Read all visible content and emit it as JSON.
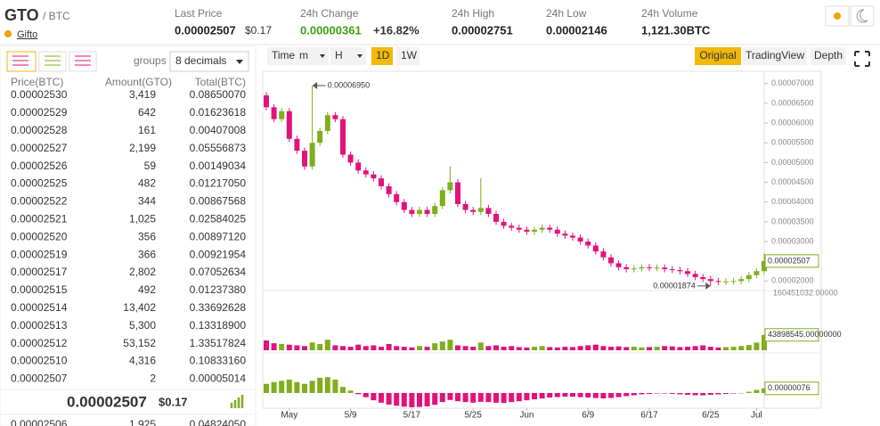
{
  "header": {
    "symbol": "GTO",
    "quote": "/ BTC",
    "name": "Gifto",
    "stats": [
      {
        "label": "Last Price",
        "value": "0.00002507",
        "extra": "$0.17"
      },
      {
        "label": "24h Change",
        "value": "0.00000361",
        "extra": "+16.82%"
      },
      {
        "label": "24h High",
        "value": "0.00002751"
      },
      {
        "label": "24h Low",
        "value": "0.00002146"
      },
      {
        "label": "24h Volume",
        "value": "1,121.30BTC"
      }
    ]
  },
  "orderbook": {
    "groups_label": "groups",
    "decimals": "8 decimals",
    "columns": [
      "Price(BTC)",
      "Amount(GTO)",
      "Total(BTC)"
    ],
    "asks": [
      [
        "0.00002530",
        "3,419",
        "0.08650070"
      ],
      [
        "0.00002529",
        "642",
        "0.01623618"
      ],
      [
        "0.00002528",
        "161",
        "0.00407008"
      ],
      [
        "0.00002527",
        "2,199",
        "0.05556873"
      ],
      [
        "0.00002526",
        "59",
        "0.00149034"
      ],
      [
        "0.00002525",
        "482",
        "0.01217050"
      ],
      [
        "0.00002522",
        "344",
        "0.00867568"
      ],
      [
        "0.00002521",
        "1,025",
        "0.02584025"
      ],
      [
        "0.00002520",
        "356",
        "0.00897120"
      ],
      [
        "0.00002519",
        "366",
        "0.00921954"
      ],
      [
        "0.00002517",
        "2,802",
        "0.07052634"
      ],
      [
        "0.00002515",
        "492",
        "0.01237380"
      ],
      [
        "0.00002514",
        "13,402",
        "0.33692628"
      ],
      [
        "0.00002513",
        "5,300",
        "0.13318900"
      ],
      [
        "0.00002512",
        "53,152",
        "1.33517824"
      ],
      [
        "0.00002510",
        "4,316",
        "0.10833160"
      ],
      [
        "0.00002507",
        "2",
        "0.00005014"
      ]
    ],
    "last_price": "0.00002507",
    "last_usd": "$0.17",
    "bids": [
      [
        "0.00002506",
        "1,925",
        "0.04824050"
      ]
    ]
  },
  "chart_toolbar": {
    "left": [
      "Time",
      "m",
      "H",
      "1D",
      "1W"
    ],
    "active_interval": 3,
    "right": [
      "Original",
      "TradingView",
      "Depth"
    ],
    "active_view": 0
  },
  "chart_data": {
    "type": "candlestick",
    "up_color": "#7fae1c",
    "down_color": "#e2127c",
    "ylim": [
      1.85e-05,
      7.13e-05
    ],
    "yticks": [
      {
        "value": 2e-05,
        "label": "0.00002000"
      },
      {
        "value": 3e-05,
        "label": "0.00003000"
      },
      {
        "value": 3.5e-05,
        "label": "0.00003500"
      },
      {
        "value": 4e-05,
        "label": "0.00004000"
      },
      {
        "value": 4.5e-05,
        "label": "0.00004500"
      },
      {
        "value": 5e-05,
        "label": "0.00005000"
      },
      {
        "value": 5.5e-05,
        "label": "0.00005500"
      },
      {
        "value": 6e-05,
        "label": "0.00006000"
      },
      {
        "value": 6.5e-05,
        "label": "0.00006500"
      },
      {
        "value": 7e-05,
        "label": "0.00007000"
      }
    ],
    "xticks": [
      {
        "value": 3,
        "label": "May"
      },
      {
        "value": 11,
        "label": "5/9"
      },
      {
        "value": 19,
        "label": "5/17"
      },
      {
        "value": 27,
        "label": "5/25"
      },
      {
        "value": 34,
        "label": "Jun"
      },
      {
        "value": 42,
        "label": "6/9"
      },
      {
        "value": 50,
        "label": "6/17"
      },
      {
        "value": 58,
        "label": "6/25"
      },
      {
        "value": 64,
        "label": "Jul"
      }
    ],
    "open": [
      6.7e-05,
      6.4e-05,
      6.1e-05,
      6.3e-05,
      5.6e-05,
      5.3e-05,
      4.9e-05,
      5.5e-05,
      5.8e-05,
      6.2e-05,
      6.1e-05,
      5.2e-05,
      5e-05,
      4.8e-05,
      4.7e-05,
      4.6e-05,
      4.4e-05,
      4.2e-05,
      4e-05,
      3.8e-05,
      3.7e-05,
      3.8e-05,
      3.7e-05,
      3.9e-05,
      4.3e-05,
      4.5e-05,
      3.95e-05,
      3.8e-05,
      3.75e-05,
      3.85e-05,
      3.7e-05,
      3.5e-05,
      3.4e-05,
      3.35e-05,
      3.3e-05,
      3.25e-05,
      3.3e-05,
      3.35e-05,
      3.3e-05,
      3.2e-05,
      3.15e-05,
      3.1e-05,
      3e-05,
      2.9e-05,
      2.75e-05,
      2.6e-05,
      2.45e-05,
      2.35e-05,
      2.3e-05,
      2.32e-05,
      2.35e-05,
      2.33e-05,
      2.34e-05,
      2.3e-05,
      2.28e-05,
      2.25e-05,
      2.18e-05,
      2.1e-05,
      2.05e-05,
      2e-05,
      1.98e-05,
      1.99e-05,
      2e-05,
      2.05e-05,
      2.15e-05,
      2.25e-05
    ],
    "high": [
      6.78e-05,
      6.48e-05,
      6.38e-05,
      6.38e-05,
      5.68e-05,
      5.38e-05,
      6.95e-05,
      5.88e-05,
      6.28e-05,
      6.28e-05,
      6.18e-05,
      5.28e-05,
      5.08e-05,
      4.88e-05,
      4.78e-05,
      4.68e-05,
      4.48e-05,
      4.28e-05,
      4.08e-05,
      3.88e-05,
      3.88e-05,
      3.88e-05,
      3.98e-05,
      4.38e-05,
      4.9e-05,
      4.58e-05,
      4.03e-05,
      3.88e-05,
      4.6e-05,
      3.93e-05,
      3.78e-05,
      3.58e-05,
      3.48e-05,
      3.43e-05,
      3.38e-05,
      3.38e-05,
      3.43e-05,
      3.43e-05,
      3.38e-05,
      3.28e-05,
      3.23e-05,
      3.18e-05,
      3.08e-05,
      2.98e-05,
      2.83e-05,
      2.68e-05,
      2.53e-05,
      2.43e-05,
      2.4e-05,
      2.43e-05,
      2.43e-05,
      2.42e-05,
      2.42e-05,
      2.38e-05,
      2.36e-05,
      2.33e-05,
      2.26e-05,
      2.18e-05,
      2.13e-05,
      2.08e-05,
      2.07e-05,
      2.08e-05,
      2.13e-05,
      2.23e-05,
      2.33e-05,
      2.7e-05
    ],
    "low": [
      6.32e-05,
      6.02e-05,
      6.02e-05,
      5.52e-05,
      5.22e-05,
      4.82e-05,
      4.82e-05,
      5.42e-05,
      5.72e-05,
      6.02e-05,
      5.12e-05,
      4.92e-05,
      4.72e-05,
      4.62e-05,
      4.52e-05,
      4.32e-05,
      4.12e-05,
      3.92e-05,
      3.72e-05,
      3.62e-05,
      3.62e-05,
      3.62e-05,
      3.62e-05,
      3.82e-05,
      4.22e-05,
      3.87e-05,
      3.72e-05,
      3.67e-05,
      3.67e-05,
      3.62e-05,
      3.42e-05,
      3.32e-05,
      3.27e-05,
      3.22e-05,
      3.17e-05,
      3.17e-05,
      3.22e-05,
      3.22e-05,
      3.12e-05,
      3.07e-05,
      3.02e-05,
      2.92e-05,
      2.82e-05,
      2.67e-05,
      2.52e-05,
      2.37e-05,
      2.27e-05,
      2.22e-05,
      2.22e-05,
      2.24e-05,
      2.25e-05,
      2.25e-05,
      2.22e-05,
      2.2e-05,
      2.17e-05,
      2.1e-05,
      2.02e-05,
      1.97e-05,
      1.874e-05,
      1.9e-05,
      1.9e-05,
      1.91e-05,
      1.92e-05,
      1.97e-05,
      2.07e-05,
      2.17e-05
    ],
    "close": [
      6.4e-05,
      6.1e-05,
      6.3e-05,
      5.6e-05,
      5.3e-05,
      4.9e-05,
      5.5e-05,
      5.8e-05,
      6.2e-05,
      6.1e-05,
      5.2e-05,
      5e-05,
      4.8e-05,
      4.7e-05,
      4.6e-05,
      4.4e-05,
      4.2e-05,
      4e-05,
      3.8e-05,
      3.7e-05,
      3.8e-05,
      3.7e-05,
      3.9e-05,
      4.3e-05,
      4.5e-05,
      3.95e-05,
      3.8e-05,
      3.75e-05,
      3.85e-05,
      3.7e-05,
      3.5e-05,
      3.4e-05,
      3.35e-05,
      3.3e-05,
      3.25e-05,
      3.3e-05,
      3.35e-05,
      3.3e-05,
      3.2e-05,
      3.15e-05,
      3.1e-05,
      3e-05,
      2.9e-05,
      2.75e-05,
      2.6e-05,
      2.45e-05,
      2.35e-05,
      2.3e-05,
      2.32e-05,
      2.35e-05,
      2.33e-05,
      2.34e-05,
      2.3e-05,
      2.28e-05,
      2.25e-05,
      2.18e-05,
      2.1e-05,
      2.05e-05,
      2e-05,
      1.98e-05,
      1.99e-05,
      2e-05,
      2.05e-05,
      2.15e-05,
      2.25e-05,
      2.507e-05
    ],
    "last_label": "0.00002507",
    "max_label": "0.00006950",
    "min_label": "0.00001874",
    "volume": {
      "ylim": [
        0,
        160451032
      ],
      "yticks": [
        {
          "value": 160451032,
          "label": "160451032.00000"
        }
      ],
      "last_label": "43898545.00000000",
      "values": [
        28000000,
        20000000,
        18000000,
        16000000,
        14000000,
        12000000,
        22000000,
        18000000,
        30000000,
        14000000,
        12000000,
        10000000,
        16000000,
        12000000,
        14000000,
        10000000,
        18000000,
        12000000,
        10000000,
        8000000,
        12000000,
        10000000,
        20000000,
        25000000,
        30000000,
        14000000,
        12000000,
        10000000,
        22000000,
        12000000,
        14000000,
        10000000,
        12000000,
        9000000,
        8000000,
        10000000,
        12000000,
        9000000,
        8000000,
        10000000,
        9000000,
        12000000,
        14000000,
        16000000,
        12000000,
        10000000,
        11000000,
        9000000,
        10000000,
        8000000,
        9000000,
        10000000,
        12000000,
        11000000,
        9000000,
        10000000,
        12000000,
        14000000,
        10000000,
        8000000,
        9000000,
        10000000,
        12000000,
        15000000,
        22000000,
        43898545
      ]
    },
    "macd": {
      "ylim": [
        -2.5e-06,
        6.3e-06
      ],
      "last_label": "0.00000076",
      "values": [
        1.5e-06,
        1.8e-06,
        2e-06,
        2.2e-06,
        1.8e-06,
        1.5e-06,
        2e-06,
        2.5e-06,
        2.6e-06,
        2.2e-06,
        1e-06,
        4e-07,
        -2e-07,
        -7e-07,
        -1.2e-06,
        -1.6e-06,
        -1.9e-06,
        -2.1e-06,
        -2.25e-06,
        -2.35e-06,
        -2.3e-06,
        -2.2e-06,
        -1.95e-06,
        -1.5e-06,
        -1.15e-06,
        -1.35e-06,
        -1.5e-06,
        -1.6e-06,
        -1.45e-06,
        -1.5e-06,
        -1.6e-06,
        -1.65e-06,
        -1.5e-06,
        -1.35e-06,
        -1.2e-06,
        -1.05e-06,
        -9e-07,
        -7.5e-07,
        -6.8e-07,
        -6e-07,
        -6e-07,
        -6.8e-07,
        -7.5e-07,
        -8.2e-07,
        -9e-07,
        -8.2e-07,
        -6.8e-07,
        -5.2e-07,
        -3.8e-07,
        -2.2e-07,
        -1.5e-07,
        -8e-08,
        -8e-08,
        -1.5e-07,
        -2.2e-07,
        -3e-07,
        -3.8e-07,
        -3.8e-07,
        -3e-07,
        -2.2e-07,
        -1.5e-07,
        -8e-08,
        0,
        2e-07,
        5e-07,
        7.6e-07
      ]
    }
  }
}
